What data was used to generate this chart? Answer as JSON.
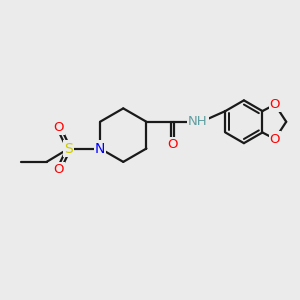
{
  "background_color": "#ebebeb",
  "atom_colors": {
    "N": "#0000ff",
    "O": "#ff0000",
    "S": "#cccc00",
    "C": "#000000",
    "H_label": "#5f9ea0",
    "bond": "#1a1a1a"
  },
  "bond_lw": 1.6,
  "figsize": [
    3.0,
    3.0
  ],
  "dpi": 100
}
